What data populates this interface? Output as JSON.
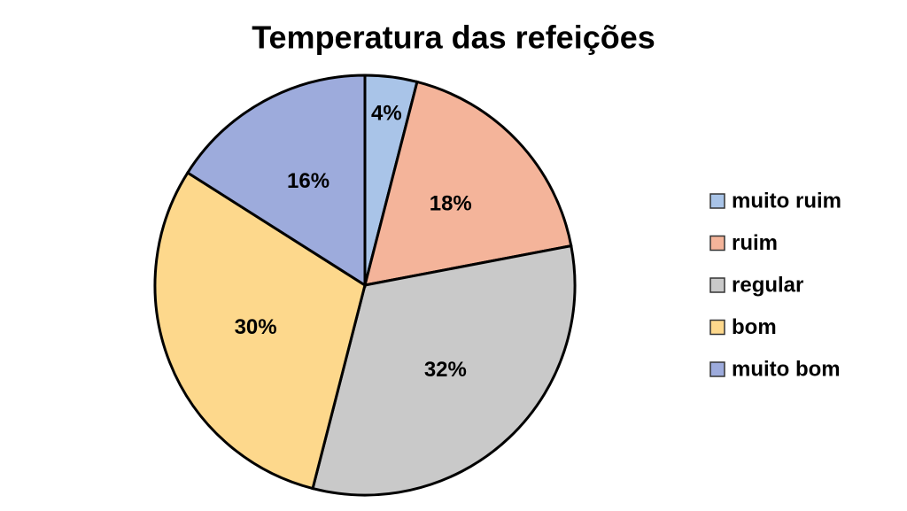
{
  "chart_data": {
    "type": "pie",
    "title": "Temperatura das refeições",
    "categories": [
      "muito ruim",
      "ruim",
      "regular",
      "bom",
      "muito bom"
    ],
    "values": [
      4,
      18,
      32,
      30,
      16
    ],
    "value_labels": [
      "4%",
      "18%",
      "32%",
      "30%",
      "16%"
    ],
    "colors": [
      "#a9c4e8",
      "#f4b49a",
      "#c9c9c9",
      "#fdd88c",
      "#9dabdc"
    ],
    "legend": "right"
  }
}
